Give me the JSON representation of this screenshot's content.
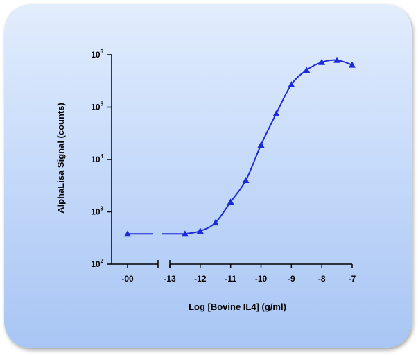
{
  "chart_data": {
    "type": "line",
    "title": "",
    "xlabel": "Log [Bovine IL4] (g/ml)",
    "ylabel": "AlphaLisa Signal (counts)",
    "y_scale": "log",
    "ylim": [
      100,
      1000000
    ],
    "y_ticks": [
      {
        "value": 100,
        "base": "10",
        "exp": "2"
      },
      {
        "value": 1000,
        "base": "10",
        "exp": "3"
      },
      {
        "value": 10000,
        "base": "10",
        "exp": "4"
      },
      {
        "value": 100000,
        "base": "10",
        "exp": "5"
      },
      {
        "value": 1000000,
        "base": "10",
        "exp": "6"
      }
    ],
    "x_axis_break": true,
    "x_zero_tick": {
      "value": "-inf",
      "label": "-00"
    },
    "xlim": [
      -13,
      -7
    ],
    "x_ticks": [
      -13,
      -12,
      -11,
      -10,
      -9,
      -8,
      -7
    ],
    "x_tick_labels": [
      "-13",
      "-12",
      "-11",
      "-10",
      "-9",
      "-8",
      "-7"
    ],
    "series": [
      {
        "name": "",
        "color": "#1c2bd6",
        "marker": "triangle",
        "zero_point": {
          "x": "-inf",
          "y": 380
        },
        "points": [
          {
            "x": -12.5,
            "y": 380
          },
          {
            "x": -12.0,
            "y": 430
          },
          {
            "x": -11.5,
            "y": 620
          },
          {
            "x": -11.0,
            "y": 1550
          },
          {
            "x": -10.5,
            "y": 4000
          },
          {
            "x": -10.0,
            "y": 19000
          },
          {
            "x": -9.5,
            "y": 75000
          },
          {
            "x": -9.0,
            "y": 270000
          },
          {
            "x": -8.5,
            "y": 510000
          },
          {
            "x": -8.0,
            "y": 720000
          },
          {
            "x": -7.5,
            "y": 790000
          },
          {
            "x": -7.0,
            "y": 640000
          }
        ]
      }
    ]
  }
}
